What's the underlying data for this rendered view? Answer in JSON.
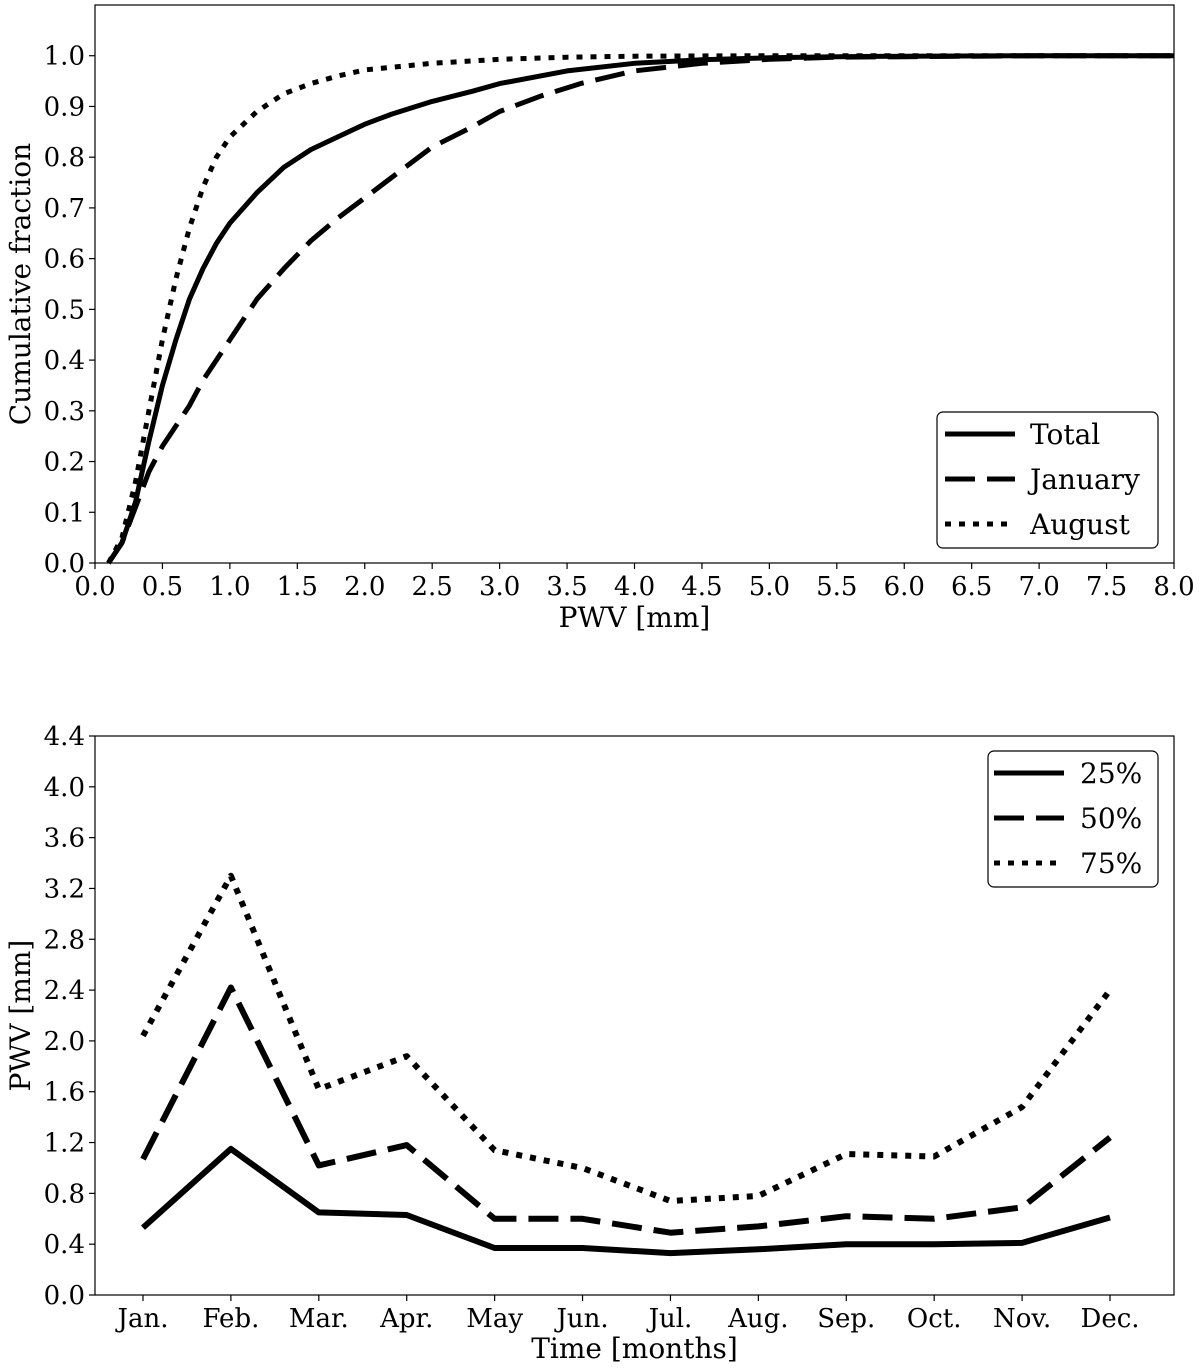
{
  "chart_data": [
    {
      "type": "line",
      "xlabel": "PWV [mm]",
      "ylabel": "Cumulative fraction",
      "xlim": [
        0.0,
        8.0
      ],
      "ylim": [
        0.0,
        1.1
      ],
      "x_ticks": [
        "0.0",
        "0.5",
        "1.0",
        "1.5",
        "2.0",
        "2.5",
        "3.0",
        "3.5",
        "4.0",
        "4.5",
        "5.0",
        "5.5",
        "6.0",
        "6.5",
        "7.0",
        "7.5",
        "8.0"
      ],
      "y_ticks": [
        "0.0",
        "0.1",
        "0.2",
        "0.3",
        "0.4",
        "0.5",
        "0.6",
        "0.7",
        "0.8",
        "0.9",
        "1.0"
      ],
      "legend_position": "lower-right",
      "grid": false,
      "series": [
        {
          "name": "Total",
          "style": "solid",
          "points": [
            [
              0.1,
              0.0
            ],
            [
              0.2,
              0.04
            ],
            [
              0.3,
              0.12
            ],
            [
              0.4,
              0.24
            ],
            [
              0.5,
              0.35
            ],
            [
              0.6,
              0.44
            ],
            [
              0.7,
              0.52
            ],
            [
              0.8,
              0.58
            ],
            [
              0.9,
              0.63
            ],
            [
              1.0,
              0.67
            ],
            [
              1.2,
              0.73
            ],
            [
              1.4,
              0.78
            ],
            [
              1.6,
              0.815
            ],
            [
              1.8,
              0.84
            ],
            [
              2.0,
              0.865
            ],
            [
              2.2,
              0.885
            ],
            [
              2.5,
              0.91
            ],
            [
              2.8,
              0.93
            ],
            [
              3.0,
              0.945
            ],
            [
              3.5,
              0.97
            ],
            [
              4.0,
              0.985
            ],
            [
              4.5,
              0.992
            ],
            [
              5.0,
              0.996
            ],
            [
              5.5,
              0.998
            ],
            [
              6.0,
              0.999
            ],
            [
              7.0,
              1.0
            ],
            [
              8.0,
              1.0
            ]
          ]
        },
        {
          "name": "January",
          "style": "dashed",
          "points": [
            [
              0.1,
              0.0
            ],
            [
              0.2,
              0.04
            ],
            [
              0.3,
              0.11
            ],
            [
              0.4,
              0.18
            ],
            [
              0.5,
              0.23
            ],
            [
              0.6,
              0.27
            ],
            [
              0.7,
              0.31
            ],
            [
              0.8,
              0.36
            ],
            [
              0.9,
              0.4
            ],
            [
              1.0,
              0.44
            ],
            [
              1.2,
              0.52
            ],
            [
              1.4,
              0.58
            ],
            [
              1.6,
              0.635
            ],
            [
              1.8,
              0.68
            ],
            [
              2.0,
              0.72
            ],
            [
              2.3,
              0.78
            ],
            [
              2.5,
              0.82
            ],
            [
              2.8,
              0.86
            ],
            [
              3.0,
              0.89
            ],
            [
              3.3,
              0.92
            ],
            [
              3.6,
              0.945
            ],
            [
              4.0,
              0.97
            ],
            [
              4.5,
              0.985
            ],
            [
              5.0,
              0.993
            ],
            [
              5.5,
              0.997
            ],
            [
              6.0,
              0.998
            ],
            [
              7.0,
              1.0
            ],
            [
              8.0,
              1.0
            ]
          ]
        },
        {
          "name": "August",
          "style": "dotted",
          "points": [
            [
              0.1,
              0.0
            ],
            [
              0.2,
              0.05
            ],
            [
              0.3,
              0.16
            ],
            [
              0.4,
              0.3
            ],
            [
              0.5,
              0.44
            ],
            [
              0.6,
              0.56
            ],
            [
              0.7,
              0.66
            ],
            [
              0.8,
              0.74
            ],
            [
              0.9,
              0.8
            ],
            [
              1.0,
              0.84
            ],
            [
              1.2,
              0.89
            ],
            [
              1.4,
              0.925
            ],
            [
              1.6,
              0.945
            ],
            [
              1.8,
              0.96
            ],
            [
              2.0,
              0.972
            ],
            [
              2.5,
              0.985
            ],
            [
              3.0,
              0.993
            ],
            [
              3.5,
              0.997
            ],
            [
              4.0,
              0.999
            ],
            [
              5.0,
              1.0
            ],
            [
              8.0,
              1.0
            ]
          ]
        }
      ]
    },
    {
      "type": "line",
      "xlabel": "Time [months]",
      "ylabel": "PWV [mm]",
      "categories": [
        "Jan.",
        "Feb.",
        "Mar.",
        "Apr.",
        "May",
        "Jun.",
        "Jul.",
        "Aug.",
        "Sep.",
        "Oct.",
        "Nov.",
        "Dec."
      ],
      "ylim": [
        0.0,
        4.4
      ],
      "y_ticks": [
        "0.0",
        "0.4",
        "0.8",
        "1.2",
        "1.6",
        "2.0",
        "2.4",
        "2.8",
        "3.2",
        "3.6",
        "4.0",
        "4.4"
      ],
      "legend_position": "upper-right",
      "grid": false,
      "series": [
        {
          "name": "25%",
          "style": "solid",
          "values": [
            0.53,
            1.15,
            0.65,
            0.63,
            0.37,
            0.37,
            0.33,
            0.36,
            0.4,
            0.4,
            0.41,
            0.61
          ]
        },
        {
          "name": "50%",
          "style": "dashed",
          "values": [
            1.07,
            2.42,
            1.02,
            1.18,
            0.6,
            0.6,
            0.49,
            0.54,
            0.62,
            0.6,
            0.69,
            1.24
          ]
        },
        {
          "name": "75%",
          "style": "dotted",
          "values": [
            2.04,
            3.3,
            1.62,
            1.88,
            1.14,
            1.0,
            0.74,
            0.78,
            1.11,
            1.09,
            1.48,
            2.4
          ]
        }
      ]
    }
  ]
}
